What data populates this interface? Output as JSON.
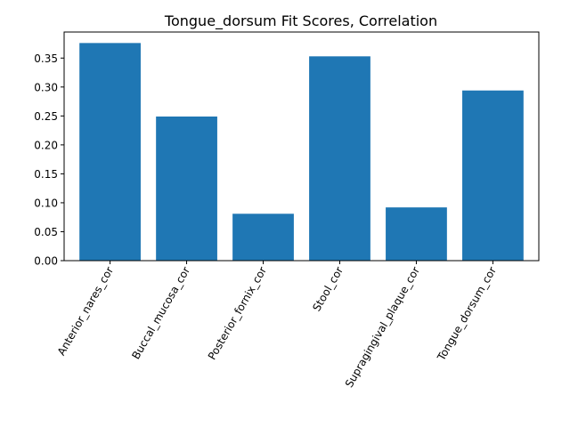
{
  "chart_data": {
    "type": "bar",
    "title": "Tongue_dorsum Fit Scores, Correlation",
    "xlabel": "",
    "ylabel": "",
    "categories": [
      "Anterior_nares_cor",
      "Buccal_mucosa_cor",
      "Posterior_fornix_cor",
      "Stool_cor",
      "Supragingival_plaque_cor",
      "Tongue_dorsum_cor"
    ],
    "values": [
      0.376,
      0.249,
      0.081,
      0.353,
      0.092,
      0.294
    ],
    "ylim": [
      0,
      0.395
    ],
    "yticks": [
      "0.00",
      "0.05",
      "0.10",
      "0.15",
      "0.20",
      "0.25",
      "0.30",
      "0.35"
    ],
    "bar_color": "#1f77b4",
    "grid": false,
    "legend": "none"
  }
}
